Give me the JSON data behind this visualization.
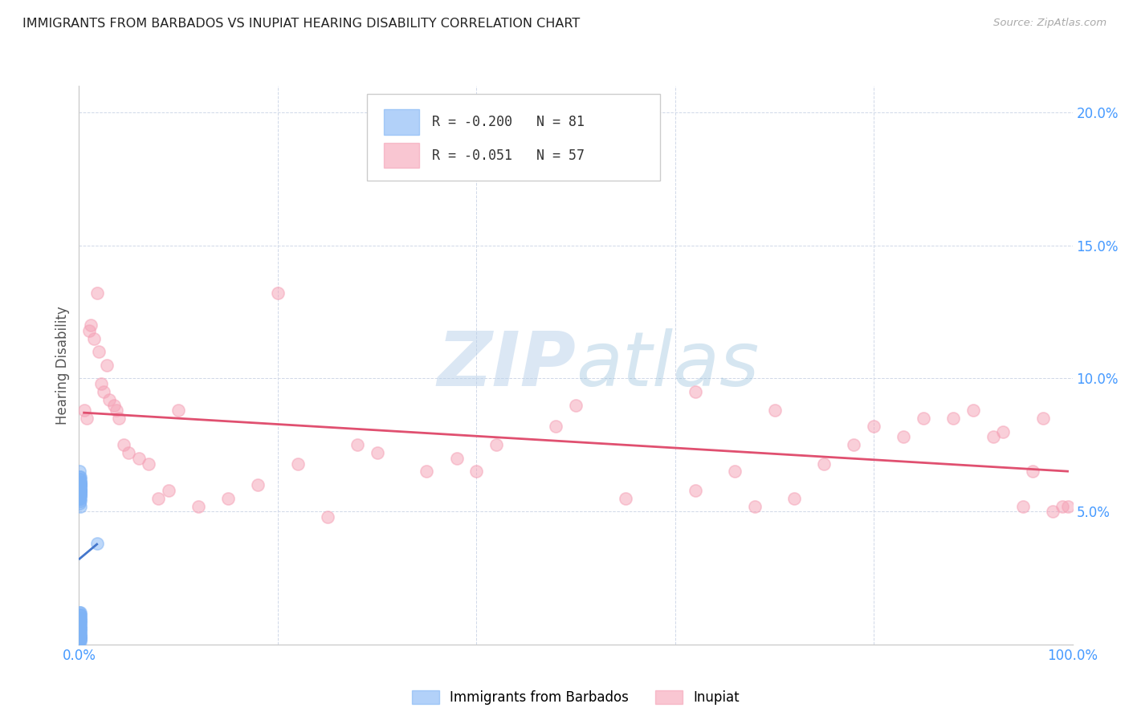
{
  "title": "IMMIGRANTS FROM BARBADOS VS INUPIAT HEARING DISABILITY CORRELATION CHART",
  "source": "Source: ZipAtlas.com",
  "ylabel": "Hearing Disability",
  "legend_r_blue": "-0.200",
  "legend_n_blue": "81",
  "legend_r_pink": "-0.051",
  "legend_n_pink": "57",
  "blue_color": "#7fb3f5",
  "pink_color": "#f5a0b5",
  "trendline_blue_color": "#4477cc",
  "trendline_pink_color": "#e05070",
  "watermark_color": "#c5d8f0",
  "background_color": "#ffffff",
  "grid_color": "#d0d8e8",
  "title_color": "#222222",
  "axis_label_color": "#555555",
  "tick_color": "#4499ff",
  "source_color": "#aaaaaa",
  "blue_scatter_x": [
    0.05,
    0.06,
    0.07,
    0.08,
    0.09,
    0.1,
    0.11,
    0.12,
    0.13,
    0.14,
    0.05,
    0.06,
    0.07,
    0.08,
    0.09,
    0.1,
    0.11,
    0.12,
    0.13,
    0.15,
    0.05,
    0.06,
    0.07,
    0.08,
    0.09,
    0.1,
    0.11,
    0.12,
    0.13,
    0.14,
    0.05,
    0.06,
    0.07,
    0.08,
    0.09,
    0.1,
    0.11,
    0.12,
    0.13,
    0.14,
    0.05,
    0.06,
    0.07,
    0.08,
    0.09,
    0.1,
    0.11,
    0.12,
    0.13,
    0.14,
    0.05,
    0.06,
    0.07,
    0.08,
    0.09,
    0.1,
    0.11,
    0.12,
    0.13,
    0.14,
    0.05,
    0.06,
    0.07,
    0.08,
    0.09,
    0.1,
    0.11,
    0.12,
    0.13,
    0.14,
    0.05,
    0.06,
    0.07,
    0.08,
    0.09,
    0.1,
    0.11,
    0.12,
    0.13,
    0.14,
    1.8
  ],
  "blue_scatter_y": [
    0.2,
    0.3,
    0.1,
    0.4,
    0.2,
    0.3,
    0.1,
    0.2,
    0.3,
    0.2,
    0.5,
    0.4,
    0.6,
    0.3,
    0.5,
    0.4,
    0.6,
    0.3,
    0.5,
    0.4,
    0.8,
    0.7,
    0.9,
    0.6,
    0.8,
    0.7,
    0.9,
    0.6,
    0.8,
    0.7,
    1.0,
    1.1,
    0.9,
    1.2,
    1.0,
    1.1,
    0.9,
    1.2,
    1.0,
    1.1,
    5.5,
    5.8,
    6.0,
    6.2,
    5.7,
    5.9,
    6.1,
    5.6,
    5.8,
    6.0,
    5.3,
    5.5,
    5.7,
    5.9,
    5.4,
    5.6,
    5.8,
    5.2,
    5.5,
    5.7,
    6.3,
    6.5,
    6.1,
    5.9,
    6.2,
    6.0,
    5.8,
    6.1,
    6.3,
    6.0,
    5.9,
    6.1,
    5.7,
    5.5,
    5.8,
    6.0,
    5.6,
    5.9,
    6.1,
    5.8,
    3.8
  ],
  "pink_scatter_x": [
    0.5,
    0.8,
    1.0,
    1.2,
    1.5,
    1.8,
    2.0,
    2.2,
    2.5,
    2.8,
    3.0,
    3.5,
    3.8,
    4.0,
    4.5,
    5.0,
    6.0,
    7.0,
    8.0,
    9.0,
    10.0,
    12.0,
    15.0,
    18.0,
    20.0,
    22.0,
    25.0,
    28.0,
    30.0,
    35.0,
    38.0,
    40.0,
    42.0,
    48.0,
    50.0,
    55.0,
    62.0,
    62.0,
    66.0,
    68.0,
    70.0,
    72.0,
    75.0,
    78.0,
    80.0,
    83.0,
    85.0,
    88.0,
    90.0,
    92.0,
    93.0,
    95.0,
    96.0,
    97.0,
    98.0,
    99.0,
    99.5
  ],
  "pink_scatter_y": [
    8.8,
    8.5,
    11.8,
    12.0,
    11.5,
    13.2,
    11.0,
    9.8,
    9.5,
    10.5,
    9.2,
    9.0,
    8.8,
    8.5,
    7.5,
    7.2,
    7.0,
    6.8,
    5.5,
    5.8,
    8.8,
    5.2,
    5.5,
    6.0,
    13.2,
    6.8,
    4.8,
    7.5,
    7.2,
    6.5,
    7.0,
    6.5,
    7.5,
    8.2,
    9.0,
    5.5,
    9.5,
    5.8,
    6.5,
    5.2,
    8.8,
    5.5,
    6.8,
    7.5,
    8.2,
    7.8,
    8.5,
    8.5,
    8.8,
    7.8,
    8.0,
    5.2,
    6.5,
    8.5,
    5.0,
    5.2,
    5.2
  ]
}
